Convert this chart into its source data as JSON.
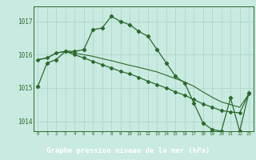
{
  "title": "Graphe pression niveau de la mer (hPa)",
  "x": [
    0,
    1,
    2,
    3,
    4,
    5,
    6,
    7,
    8,
    9,
    10,
    11,
    12,
    13,
    14,
    15,
    16,
    17,
    18,
    19,
    20,
    21,
    22,
    23
  ],
  "line1": [
    1015.05,
    1015.75,
    1015.85,
    1016.1,
    1016.1,
    1016.15,
    1016.75,
    1016.8,
    1017.15,
    1017.0,
    1016.9,
    1016.7,
    1016.55,
    1016.15,
    1015.75,
    1015.35,
    1015.15,
    1014.55,
    1013.95,
    1013.75,
    1013.7,
    1014.7,
    1013.7,
    1014.85
  ],
  "line2": [
    1015.85,
    1015.9,
    1016.05,
    1016.1,
    1016.0,
    1015.9,
    1015.8,
    1015.7,
    1015.6,
    1015.5,
    1015.42,
    1015.32,
    1015.2,
    1015.1,
    1015.0,
    1014.88,
    1014.78,
    1014.65,
    1014.52,
    1014.42,
    1014.32,
    1014.28,
    1014.25,
    1014.82
  ],
  "line3": [
    1015.85,
    1015.9,
    1016.05,
    1016.1,
    1016.05,
    1016.0,
    1015.95,
    1015.88,
    1015.82,
    1015.75,
    1015.68,
    1015.62,
    1015.55,
    1015.48,
    1015.38,
    1015.28,
    1015.18,
    1015.05,
    1014.88,
    1014.72,
    1014.58,
    1014.5,
    1014.42,
    1014.82
  ],
  "ylim": [
    1013.7,
    1017.45
  ],
  "yticks": [
    1014,
    1015,
    1016,
    1017
  ],
  "xlim": [
    -0.5,
    23.5
  ],
  "line_color": "#2d6a2d",
  "bg_color": "#c8eae0",
  "grid_color": "#b0d8cc",
  "title_bg": "#2d6a2d",
  "title_color": "#ffffff",
  "axis_color": "#2d6a2d"
}
